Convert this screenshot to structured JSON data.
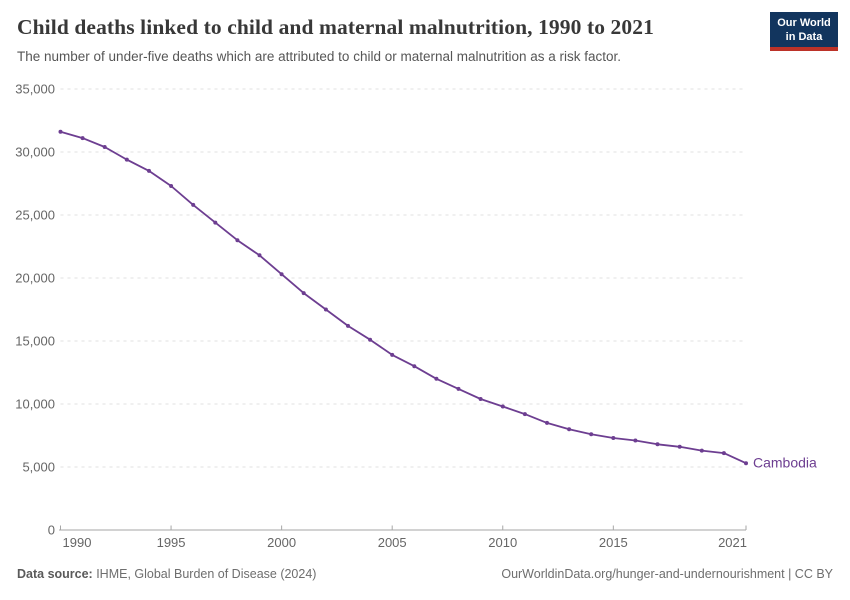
{
  "header": {
    "title": "Child deaths linked to child and maternal malnutrition, 1990 to 2021",
    "subtitle": "The number of under-five deaths which are attributed to child or maternal malnutrition as a risk factor.",
    "logo": {
      "line1": "Our World",
      "line2": "in Data"
    }
  },
  "chart_data": {
    "type": "line",
    "title": "Child deaths linked to child and maternal malnutrition, 1990 to 2021",
    "subtitle": "The number of under-five deaths which are attributed to child or maternal malnutrition as a risk factor.",
    "x": [
      1990,
      1991,
      1992,
      1993,
      1994,
      1995,
      1996,
      1997,
      1998,
      1999,
      2000,
      2001,
      2002,
      2003,
      2004,
      2005,
      2006,
      2007,
      2008,
      2009,
      2010,
      2011,
      2012,
      2013,
      2014,
      2015,
      2016,
      2017,
      2018,
      2019,
      2020,
      2021
    ],
    "series": [
      {
        "name": "Cambodia",
        "color": "#6d3e91",
        "values": [
          31600,
          31100,
          30400,
          29400,
          28500,
          27300,
          25800,
          24400,
          23000,
          21800,
          20300,
          18800,
          17500,
          16200,
          15100,
          13900,
          13000,
          12000,
          11200,
          10400,
          9800,
          9200,
          8500,
          8000,
          7600,
          7300,
          7100,
          6800,
          6600,
          6300,
          6100,
          5300
        ]
      }
    ],
    "ylim": [
      0,
      35000
    ],
    "yticks": [
      0,
      5000,
      10000,
      15000,
      20000,
      25000,
      30000,
      35000
    ],
    "xticks": [
      1990,
      1995,
      2000,
      2005,
      2010,
      2015,
      2021
    ],
    "grid": "horizontal-dashed",
    "legend": "inline-end-label",
    "xlabel": "",
    "ylabel": ""
  },
  "colors": {
    "line": "#6d3e91",
    "gridline": "#e0e0e0",
    "axis_line": "#a6a6a6",
    "axis_text": "#666666",
    "series_label": "#6d3e91"
  },
  "footer": {
    "source_label": "Data source:",
    "source_text": " IHME, Global Burden of Disease (2024)",
    "right_text": "OurWorldinData.org/hunger-and-undernourishment | CC BY"
  }
}
